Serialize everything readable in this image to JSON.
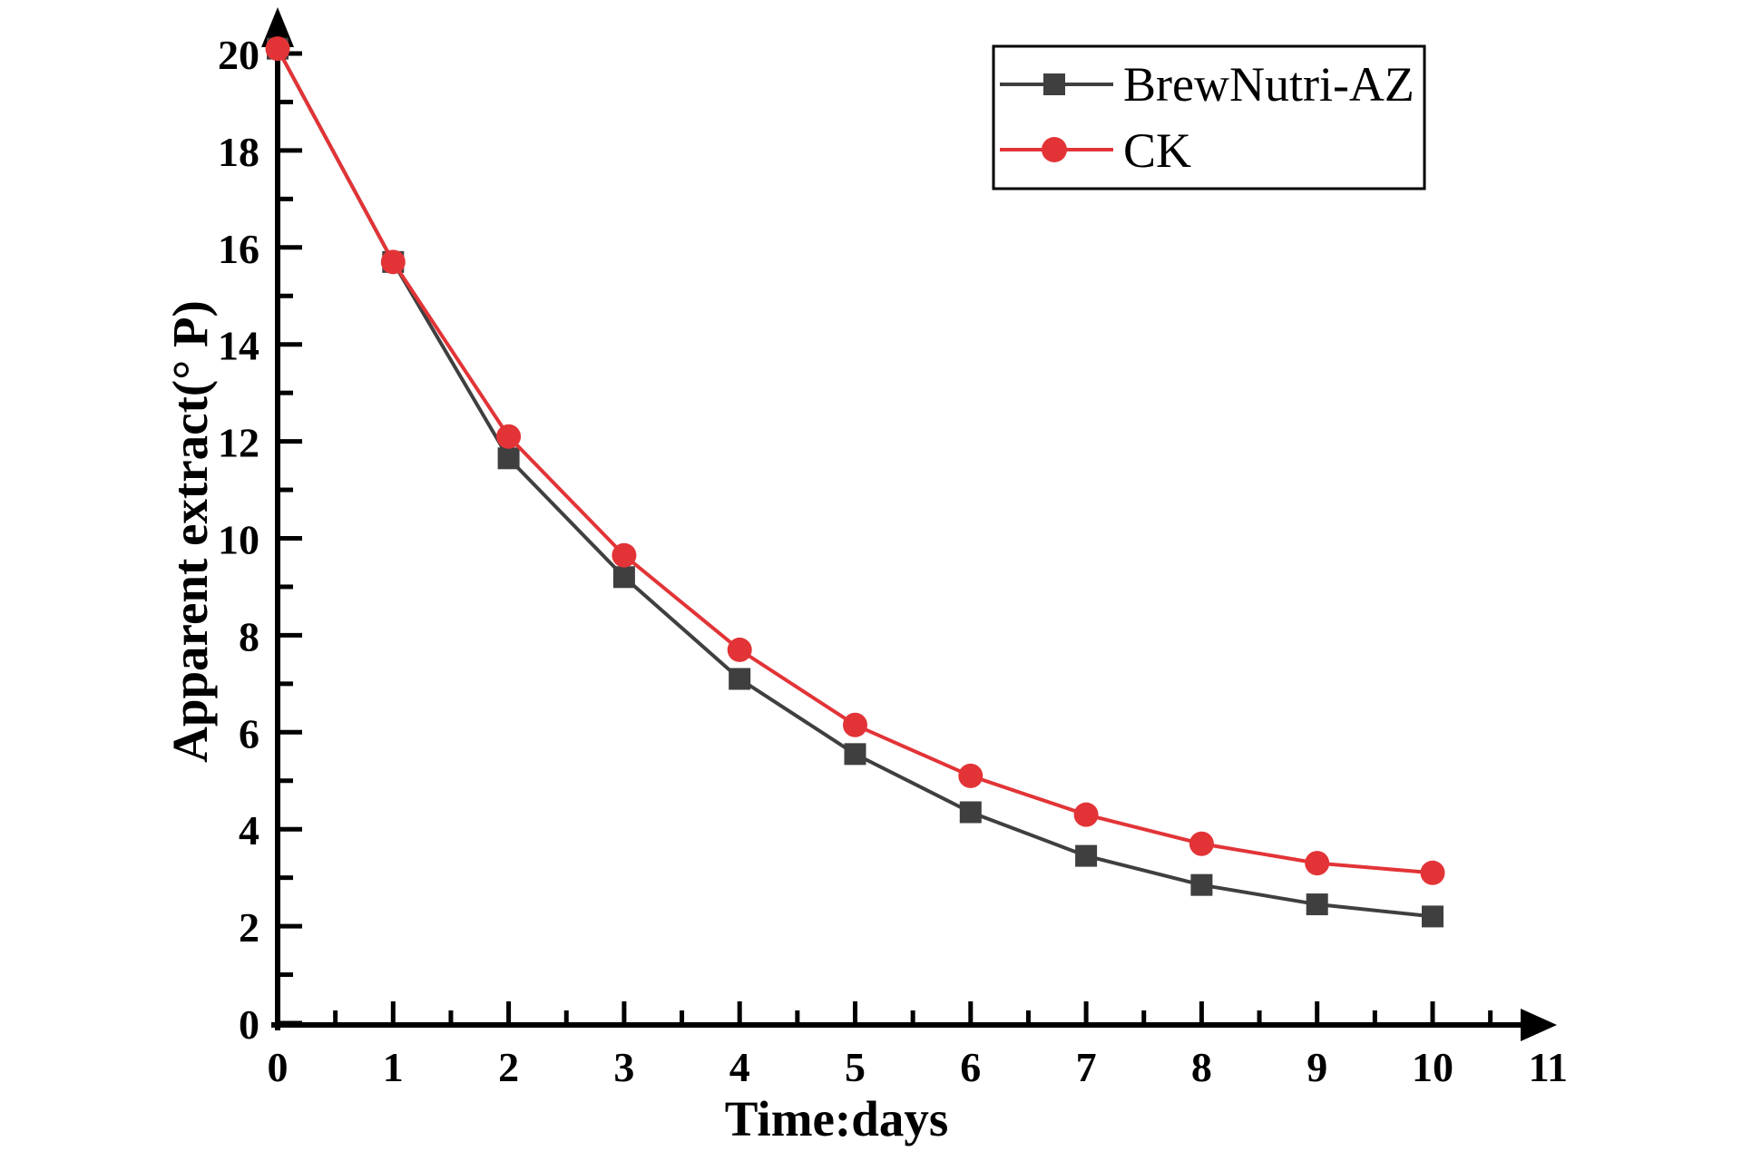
{
  "chart_data": {
    "type": "line",
    "title": "",
    "xlabel": "Time:days",
    "ylabel": "Apparent extract(° P)",
    "x": [
      0,
      1,
      2,
      3,
      4,
      5,
      6,
      7,
      8,
      9,
      10
    ],
    "series": [
      {
        "name": "BrewNutri-AZ",
        "marker": "square",
        "color": "#3f3f3f",
        "values": [
          20.1,
          15.7,
          11.65,
          9.2,
          7.1,
          5.55,
          4.35,
          3.45,
          2.85,
          2.45,
          2.2
        ]
      },
      {
        "name": "CK",
        "marker": "circle",
        "color": "#e23437",
        "values": [
          20.1,
          15.7,
          12.1,
          9.65,
          7.7,
          6.15,
          5.1,
          4.3,
          3.7,
          3.3,
          3.1
        ]
      }
    ],
    "xlim": [
      0,
      11
    ],
    "ylim": [
      0,
      20
    ],
    "x_major_step": 1,
    "x_minor_step": 0.5,
    "y_major_step": 2,
    "y_minor_step": 1,
    "x_tick_labels": [
      "0",
      "1",
      "2",
      "3",
      "4",
      "5",
      "6",
      "7",
      "8",
      "9",
      "10",
      "11"
    ],
    "y_tick_labels": [
      "0",
      "2",
      "4",
      "6",
      "8",
      "10",
      "12",
      "14",
      "16",
      "18",
      "20"
    ],
    "grid": false,
    "legend_position": "top-right",
    "axis_color": "#000000",
    "background": "#ffffff"
  }
}
